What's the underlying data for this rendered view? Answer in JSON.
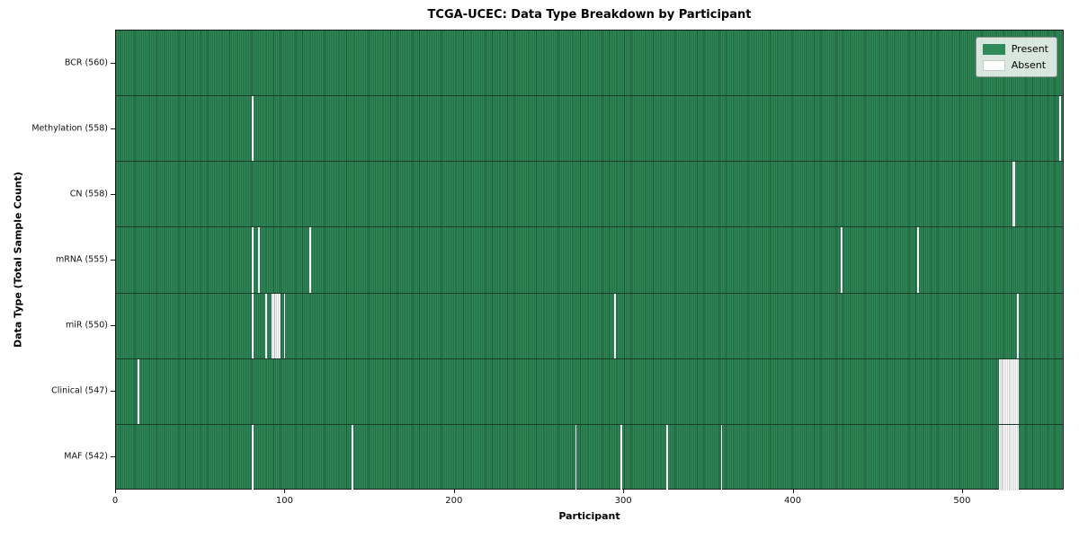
{
  "chart_data": {
    "type": "heatmap",
    "title": "TCGA-UCEC: Data Type Breakdown by Participant",
    "xlabel": "Participant",
    "ylabel": "Data Type (Total Sample Count)",
    "n_participants": 560,
    "xlim": [
      0,
      560
    ],
    "x_ticks": [
      0,
      100,
      200,
      300,
      400,
      500
    ],
    "legend_position": "upper right",
    "grid": false,
    "legend": [
      {
        "label": "Present",
        "color": "#2e8b57"
      },
      {
        "label": "Absent",
        "color": "#ffffff"
      }
    ],
    "colors": {
      "present_fill": "#2e8b57",
      "cell_edge": "#1c5434",
      "absent_fill": "#ffffff",
      "absent_hatch_edge": "#b0b0b0",
      "row_separator": "#1d3a28"
    },
    "rows": [
      {
        "data_type": "BCR",
        "label": "BCR (560)",
        "present_count": 560,
        "absent_participants": []
      },
      {
        "data_type": "Methylation",
        "label": "Methylation (558)",
        "present_count": 558,
        "absent_participants": [
          80,
          557
        ]
      },
      {
        "data_type": "CN",
        "label": "CN (558)",
        "present_count": 558,
        "absent_participants": [
          529,
          530
        ]
      },
      {
        "data_type": "mRNA",
        "label": "mRNA (555)",
        "present_count": 555,
        "absent_participants": [
          80,
          84,
          114,
          428,
          473
        ]
      },
      {
        "data_type": "miR",
        "label": "miR (550)",
        "present_count": 550,
        "absent_participants": [
          80,
          88,
          92,
          93,
          94,
          95,
          96,
          99,
          294,
          532
        ]
      },
      {
        "data_type": "Clinical",
        "label": "Clinical (547)",
        "present_count": 547,
        "absent_participants": [
          13,
          521,
          522,
          523,
          524,
          525,
          526,
          527,
          528,
          529,
          530,
          531,
          532
        ]
      },
      {
        "data_type": "MAF",
        "label": "MAF (542)",
        "present_count": 542,
        "absent_participants": [
          80,
          139,
          271,
          298,
          325,
          357,
          521,
          522,
          523,
          524,
          525,
          526,
          527,
          528,
          529,
          530,
          531,
          532
        ]
      }
    ]
  }
}
